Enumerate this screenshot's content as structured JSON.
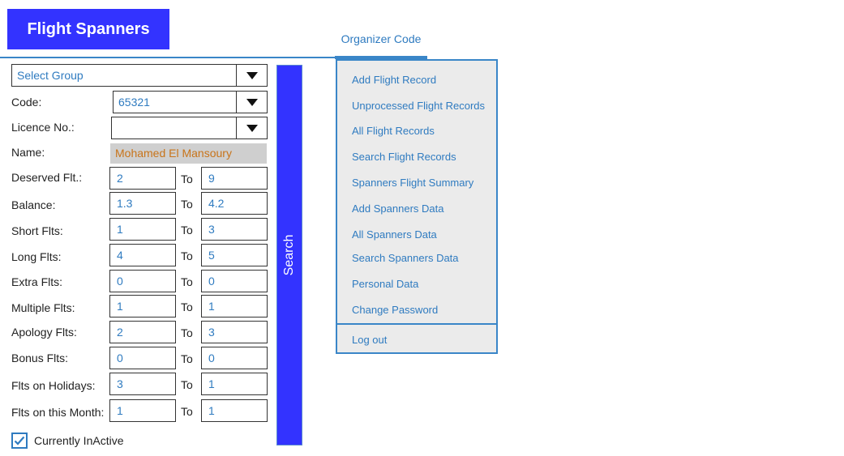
{
  "header": {
    "logo_text": "Flight Spanners",
    "tab_label": "Organizer Code"
  },
  "form": {
    "group_select": {
      "value": "Select Group"
    },
    "code": {
      "label": "Code:",
      "value": "65321"
    },
    "licence": {
      "label": "Licence No.:",
      "value": ""
    },
    "name": {
      "label": "Name:",
      "value": "Mohamed El Mansoury"
    },
    "to_label": "To",
    "ranges": [
      {
        "label": "Deserved Flt.:",
        "from": "2",
        "to": "9"
      },
      {
        "label": "Balance:",
        "from": "1.3",
        "to": "4.2"
      },
      {
        "label": "Short Flts:",
        "from": "1",
        "to": "3"
      },
      {
        "label": "Long Flts:",
        "from": "4",
        "to": "5"
      },
      {
        "label": "Extra Flts:",
        "from": "0",
        "to": "0"
      },
      {
        "label": "Multiple Flts:",
        "from": "1",
        "to": "1"
      },
      {
        "label": "Apology Flts:",
        "from": "2",
        "to": "3"
      },
      {
        "label": "Bonus Flts:",
        "from": "0",
        "to": "0"
      },
      {
        "label": "Flts on Holidays:",
        "from": "3",
        "to": "1"
      },
      {
        "label": "Flts on this Month:",
        "from": "1",
        "to": "1"
      }
    ],
    "search_button": "Search",
    "inactive_checkbox": {
      "label": "Currently InActive",
      "checked": true
    }
  },
  "menu": {
    "items": [
      "Add Flight Record",
      "Unprocessed Flight Records",
      "All Flight Records",
      "Search Flight Records",
      "Spanners Flight Summary",
      "Add Spanners Data",
      "All Spanners Data",
      "Search Spanners Data",
      "Personal Data",
      "Change Password"
    ],
    "logout": "Log out"
  },
  "colors": {
    "brand": "#3333ff",
    "accent": "#3a86c8",
    "link": "#2f7bc0",
    "name_text": "#c8741a",
    "menu_bg": "#ebebeb"
  }
}
